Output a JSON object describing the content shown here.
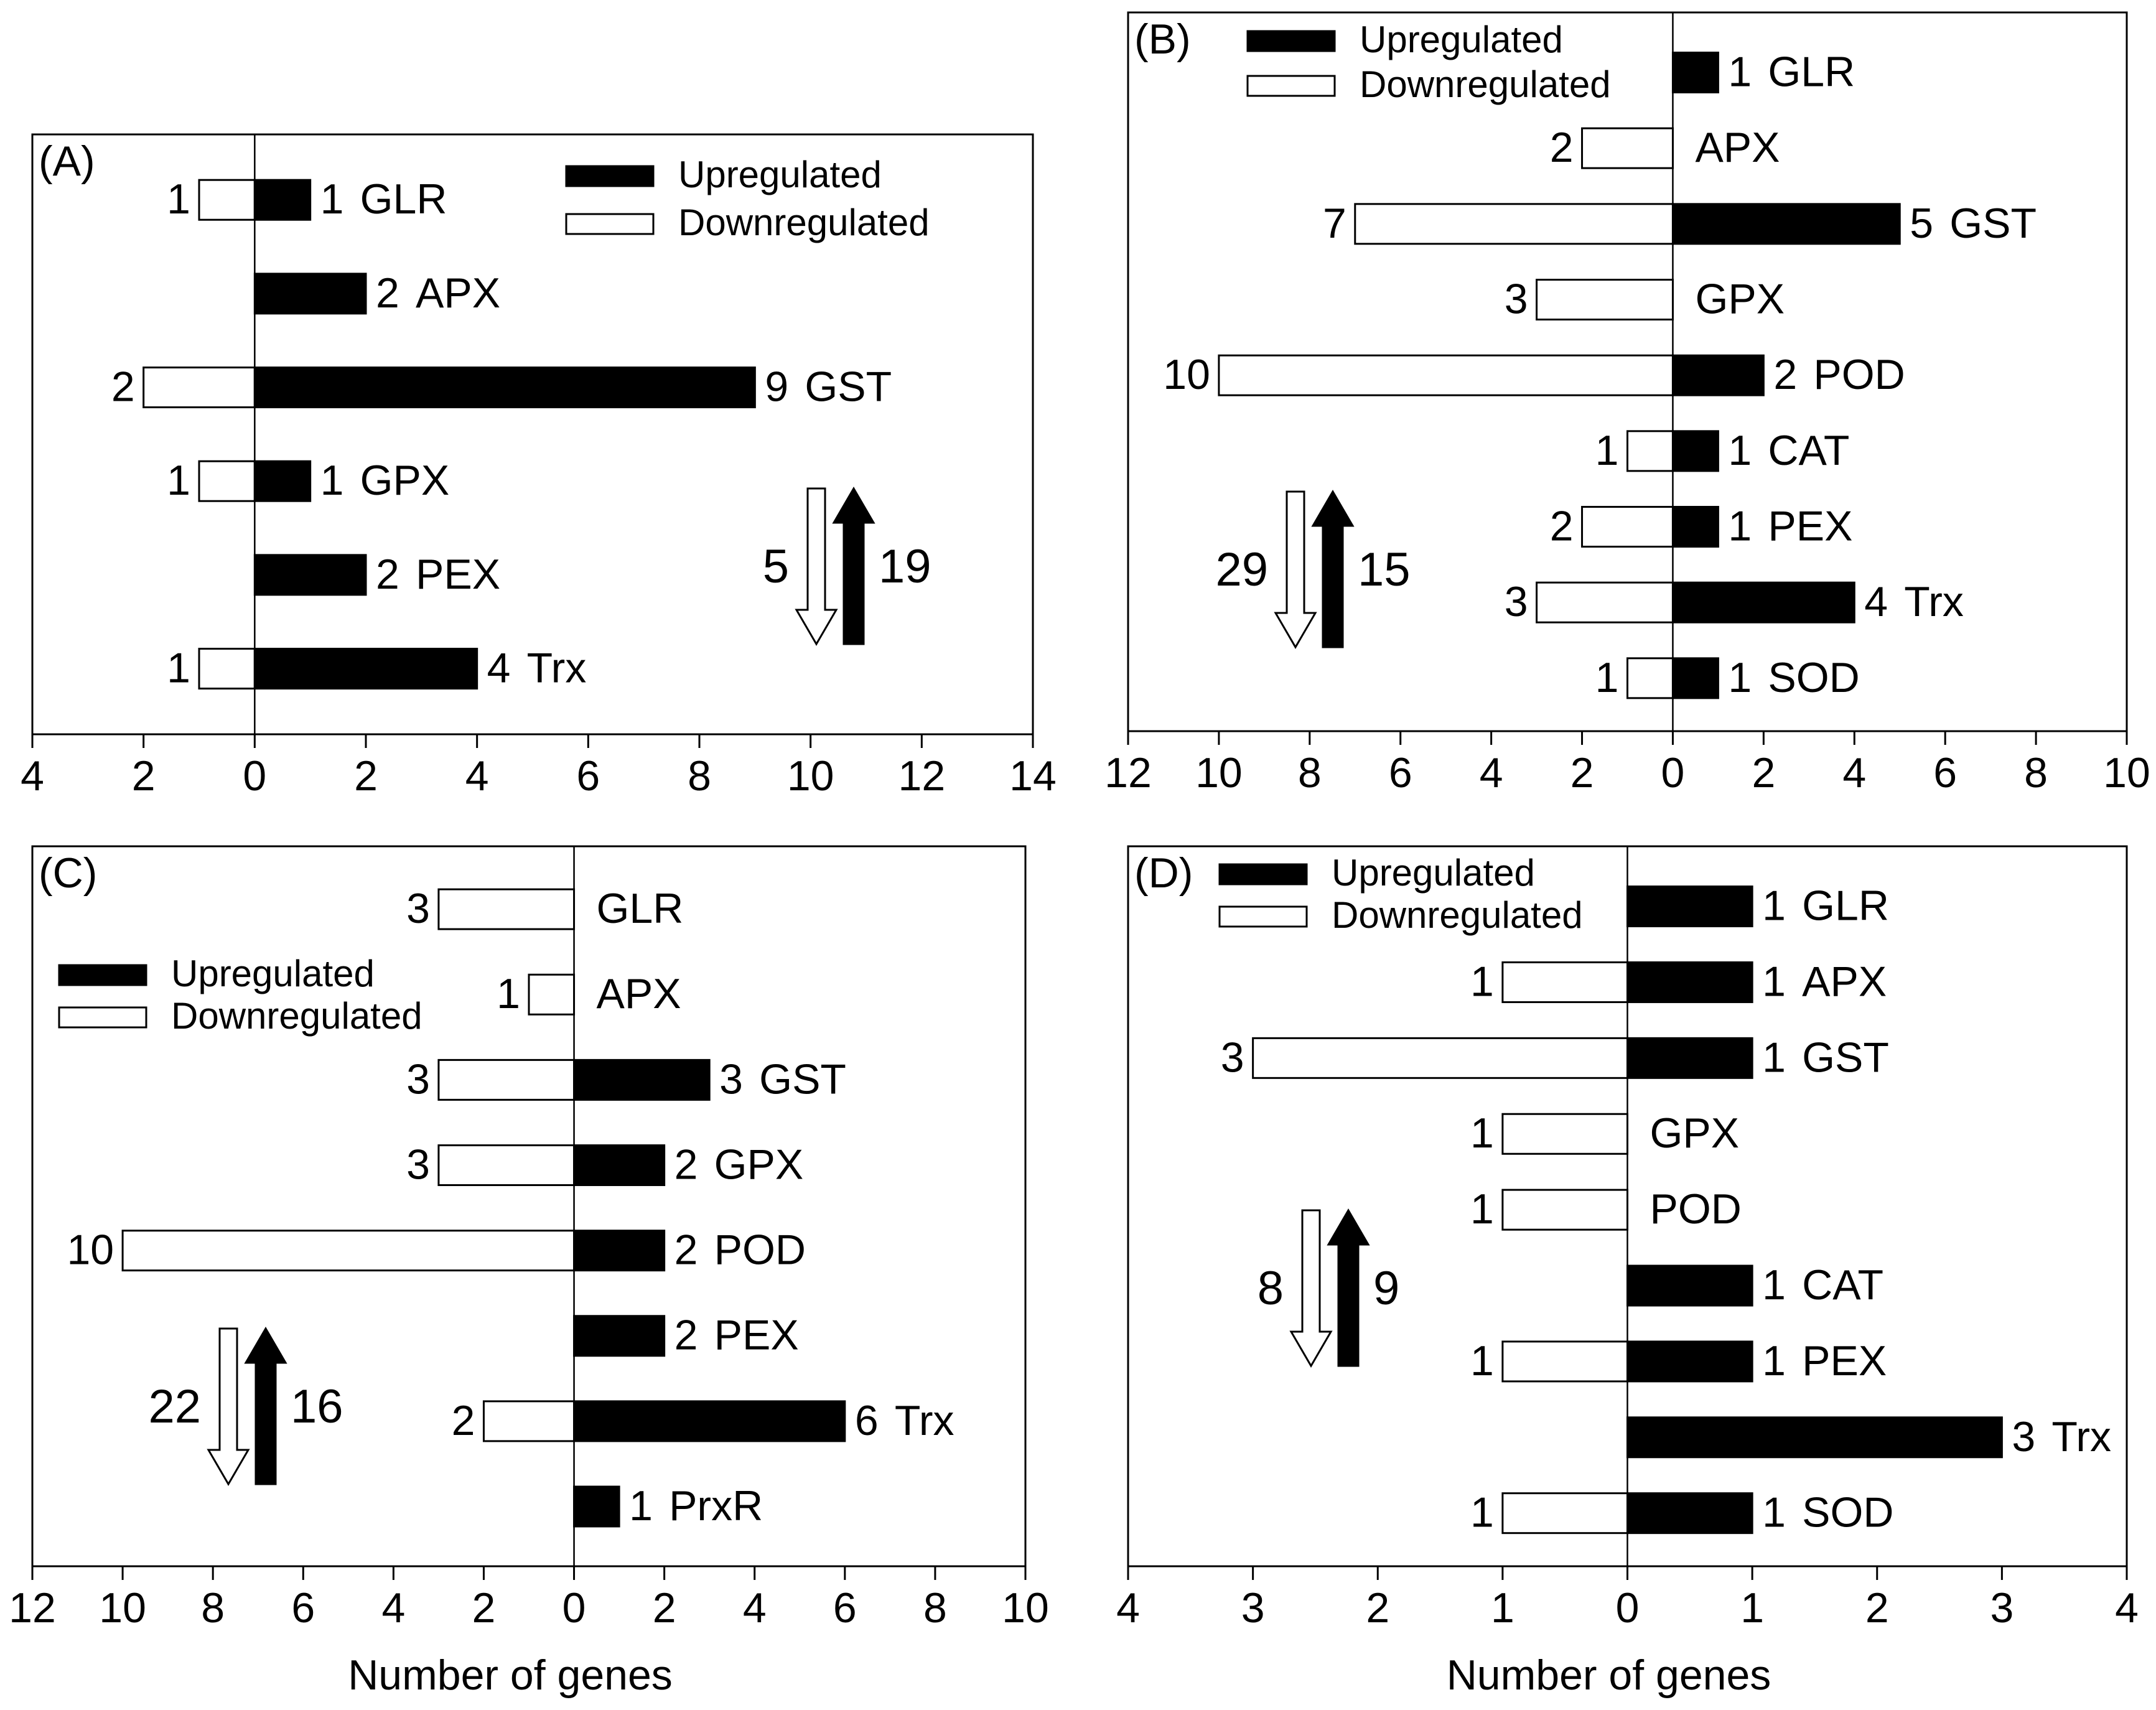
{
  "figure": {
    "xlabel": "Number of genes"
  },
  "chart_data": [
    {
      "type": "bar",
      "panel": "(A)",
      "orientation": "horizontal-diverging",
      "xlim": [
        -4,
        14
      ],
      "xticks": [
        -4,
        -2,
        0,
        2,
        4,
        6,
        8,
        10,
        12,
        14
      ],
      "xtick_labels": [
        "4",
        "2",
        "0",
        "2",
        "4",
        "6",
        "8",
        "10",
        "12",
        "14"
      ],
      "xlabel": "",
      "legend": {
        "position": "top-right",
        "up": "Upregulated",
        "down": "Downregulated"
      },
      "categories": [
        "GLR",
        "APX",
        "GST",
        "GPX",
        "PEX",
        "Trx"
      ],
      "series": [
        {
          "name": "Upregulated",
          "values": [
            1,
            2,
            9,
            1,
            2,
            4
          ]
        },
        {
          "name": "Downregulated",
          "values": [
            1,
            0,
            2,
            1,
            0,
            1
          ]
        }
      ],
      "totals": {
        "down": 5,
        "up": 19,
        "position": "bottom-right"
      }
    },
    {
      "type": "bar",
      "panel": "(B)",
      "orientation": "horizontal-diverging",
      "xlim": [
        -12,
        10
      ],
      "xticks": [
        -12,
        -10,
        -8,
        -6,
        -4,
        -2,
        0,
        2,
        4,
        6,
        8,
        10
      ],
      "xtick_labels": [
        "12",
        "10",
        "8",
        "6",
        "4",
        "2",
        "0",
        "2",
        "4",
        "6",
        "8",
        "10"
      ],
      "xlabel": "",
      "legend": {
        "position": "top-left",
        "up": "Upregulated",
        "down": "Downregulated"
      },
      "categories": [
        "GLR",
        "APX",
        "GST",
        "GPX",
        "POD",
        "CAT",
        "PEX",
        "Trx",
        "SOD"
      ],
      "series": [
        {
          "name": "Upregulated",
          "values": [
            1,
            0,
            5,
            0,
            2,
            1,
            1,
            4,
            1
          ]
        },
        {
          "name": "Downregulated",
          "values": [
            0,
            2,
            7,
            3,
            10,
            1,
            2,
            3,
            1
          ]
        }
      ],
      "totals": {
        "down": 29,
        "up": 15,
        "position": "bottom-left"
      }
    },
    {
      "type": "bar",
      "panel": "(C)",
      "orientation": "horizontal-diverging",
      "xlim": [
        -12,
        10
      ],
      "xticks": [
        -12,
        -10,
        -8,
        -6,
        -4,
        -2,
        0,
        2,
        4,
        6,
        8,
        10
      ],
      "xtick_labels": [
        "12",
        "10",
        "8",
        "6",
        "4",
        "2",
        "0",
        "2",
        "4",
        "6",
        "8",
        "10"
      ],
      "xlabel": "Number of genes",
      "legend": {
        "position": "top-left",
        "up": "Upregulated",
        "down": "Downregulated"
      },
      "categories": [
        "GLR",
        "APX",
        "GST",
        "GPX",
        "POD",
        "PEX",
        "Trx",
        "PrxR"
      ],
      "series": [
        {
          "name": "Upregulated",
          "values": [
            0,
            0,
            3,
            2,
            2,
            2,
            6,
            1
          ]
        },
        {
          "name": "Downregulated",
          "values": [
            3,
            1,
            3,
            3,
            10,
            0,
            2,
            0
          ]
        }
      ],
      "totals": {
        "down": 22,
        "up": 16,
        "position": "bottom-left"
      }
    },
    {
      "type": "bar",
      "panel": "(D)",
      "orientation": "horizontal-diverging",
      "xlim": [
        -4,
        4
      ],
      "xticks": [
        -4,
        -3,
        -2,
        -1,
        0,
        1,
        2,
        3,
        4
      ],
      "xtick_labels": [
        "4",
        "3",
        "2",
        "1",
        "0",
        "1",
        "2",
        "3",
        "4"
      ],
      "xlabel": "Number of genes",
      "legend": {
        "position": "top-left",
        "up": "Upregulated",
        "down": "Downregulated"
      },
      "categories": [
        "GLR",
        "APX",
        "GST",
        "GPX",
        "POD",
        "CAT",
        "PEX",
        "Trx",
        "SOD"
      ],
      "series": [
        {
          "name": "Upregulated",
          "values": [
            1,
            1,
            1,
            0,
            0,
            1,
            1,
            3,
            1
          ]
        },
        {
          "name": "Downregulated",
          "values": [
            0,
            1,
            3,
            1,
            1,
            0,
            1,
            0,
            1
          ]
        }
      ],
      "totals": {
        "down": 8,
        "up": 9,
        "position": "middle-left"
      }
    }
  ]
}
